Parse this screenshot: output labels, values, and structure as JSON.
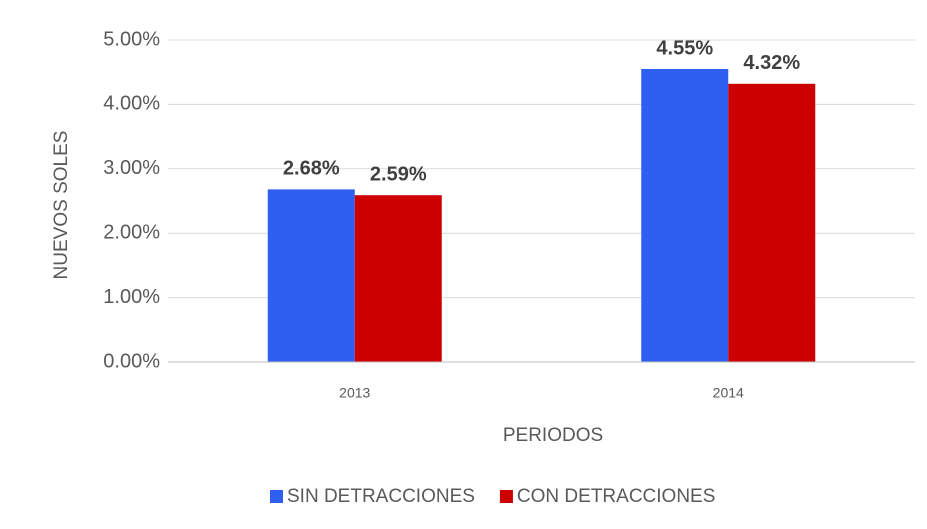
{
  "chart_data": {
    "type": "bar",
    "x_label": "PERIODOS",
    "y_label": "NUEVOS SOLES",
    "categories": [
      "2013",
      "2014"
    ],
    "series": [
      {
        "name": "SIN DETRACCIONES",
        "color": "#2e5ff0",
        "values": [
          2.68,
          4.55
        ],
        "value_labels": [
          "2.68%",
          "4.55%"
        ]
      },
      {
        "name": "CON DETRACCIONES",
        "color": "#cc0000",
        "values": [
          2.59,
          4.32
        ],
        "value_labels": [
          "2.59%",
          "4.32%"
        ]
      }
    ],
    "ylim": [
      0,
      5
    ],
    "yticks": [
      {
        "value": 0,
        "label": "0.00%"
      },
      {
        "value": 1,
        "label": "1.00%"
      },
      {
        "value": 2,
        "label": "2.00%"
      },
      {
        "value": 3,
        "label": "3.00%"
      },
      {
        "value": 4,
        "label": "4.00%"
      },
      {
        "value": 5,
        "label": "5.00%"
      }
    ],
    "grid": true,
    "legend": "bottom"
  }
}
